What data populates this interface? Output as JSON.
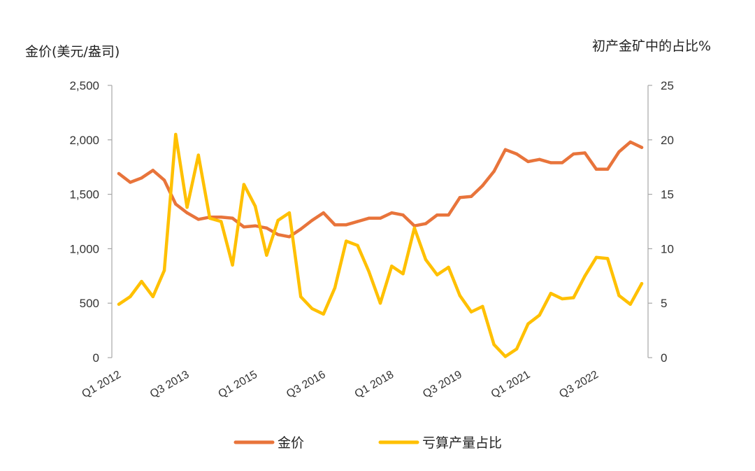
{
  "chart_data": {
    "type": "line",
    "y_left_label": "金价(美元/盎司)",
    "y_right_label": "初产金矿中的占比%",
    "y_left_range": [
      0,
      2500
    ],
    "y_left_ticks": [
      0,
      500,
      1000,
      1500,
      2000,
      2500
    ],
    "y_left_tick_labels": [
      "0",
      "500",
      "1,000",
      "1,500",
      "2,000",
      "2,500"
    ],
    "y_right_range": [
      0,
      25
    ],
    "y_right_ticks": [
      0,
      5,
      10,
      15,
      20,
      25
    ],
    "y_right_tick_labels": [
      "0",
      "5",
      "10",
      "15",
      "20",
      "25"
    ],
    "x_tick_labels": [
      "Q1 2012",
      "Q3 2013",
      "Q1 2015",
      "Q3 2016",
      "Q1 2018",
      "Q3 2019",
      "Q1 2021",
      "Q3 2022"
    ],
    "x_tick_every": 6,
    "colors": {
      "gold_price": "#E8743B",
      "loss_share": "#FFC000",
      "axis": "#A6A6A6"
    },
    "legend_position": "bottom",
    "grid": false,
    "series": [
      {
        "name": "金价",
        "axis": "left",
        "color": "#E8743B",
        "values": [
          1690,
          1610,
          1650,
          1720,
          1630,
          1410,
          1330,
          1270,
          1290,
          1290,
          1280,
          1200,
          1210,
          1190,
          1130,
          1110,
          1180,
          1260,
          1330,
          1220,
          1220,
          1250,
          1280,
          1280,
          1330,
          1310,
          1210,
          1230,
          1310,
          1310,
          1470,
          1480,
          1580,
          1710,
          1910,
          1870,
          1800,
          1820,
          1790,
          1790,
          1870,
          1880,
          1730,
          1730,
          1890,
          1980,
          1930
        ]
      },
      {
        "name": "亏算产量占比",
        "axis": "right",
        "color": "#FFC000",
        "values": [
          4.9,
          5.6,
          7.0,
          5.6,
          8.0,
          20.5,
          13.8,
          18.6,
          12.8,
          12.5,
          8.5,
          15.9,
          13.9,
          9.4,
          12.6,
          13.3,
          5.6,
          4.5,
          4.0,
          6.4,
          10.7,
          10.3,
          7.9,
          5.0,
          8.4,
          7.7,
          11.9,
          9.0,
          7.6,
          8.3,
          5.7,
          4.2,
          4.7,
          1.2,
          0.1,
          0.8,
          3.1,
          3.9,
          5.9,
          5.4,
          5.5,
          7.5,
          9.2,
          9.1,
          5.7,
          4.9,
          6.8
        ]
      }
    ]
  }
}
